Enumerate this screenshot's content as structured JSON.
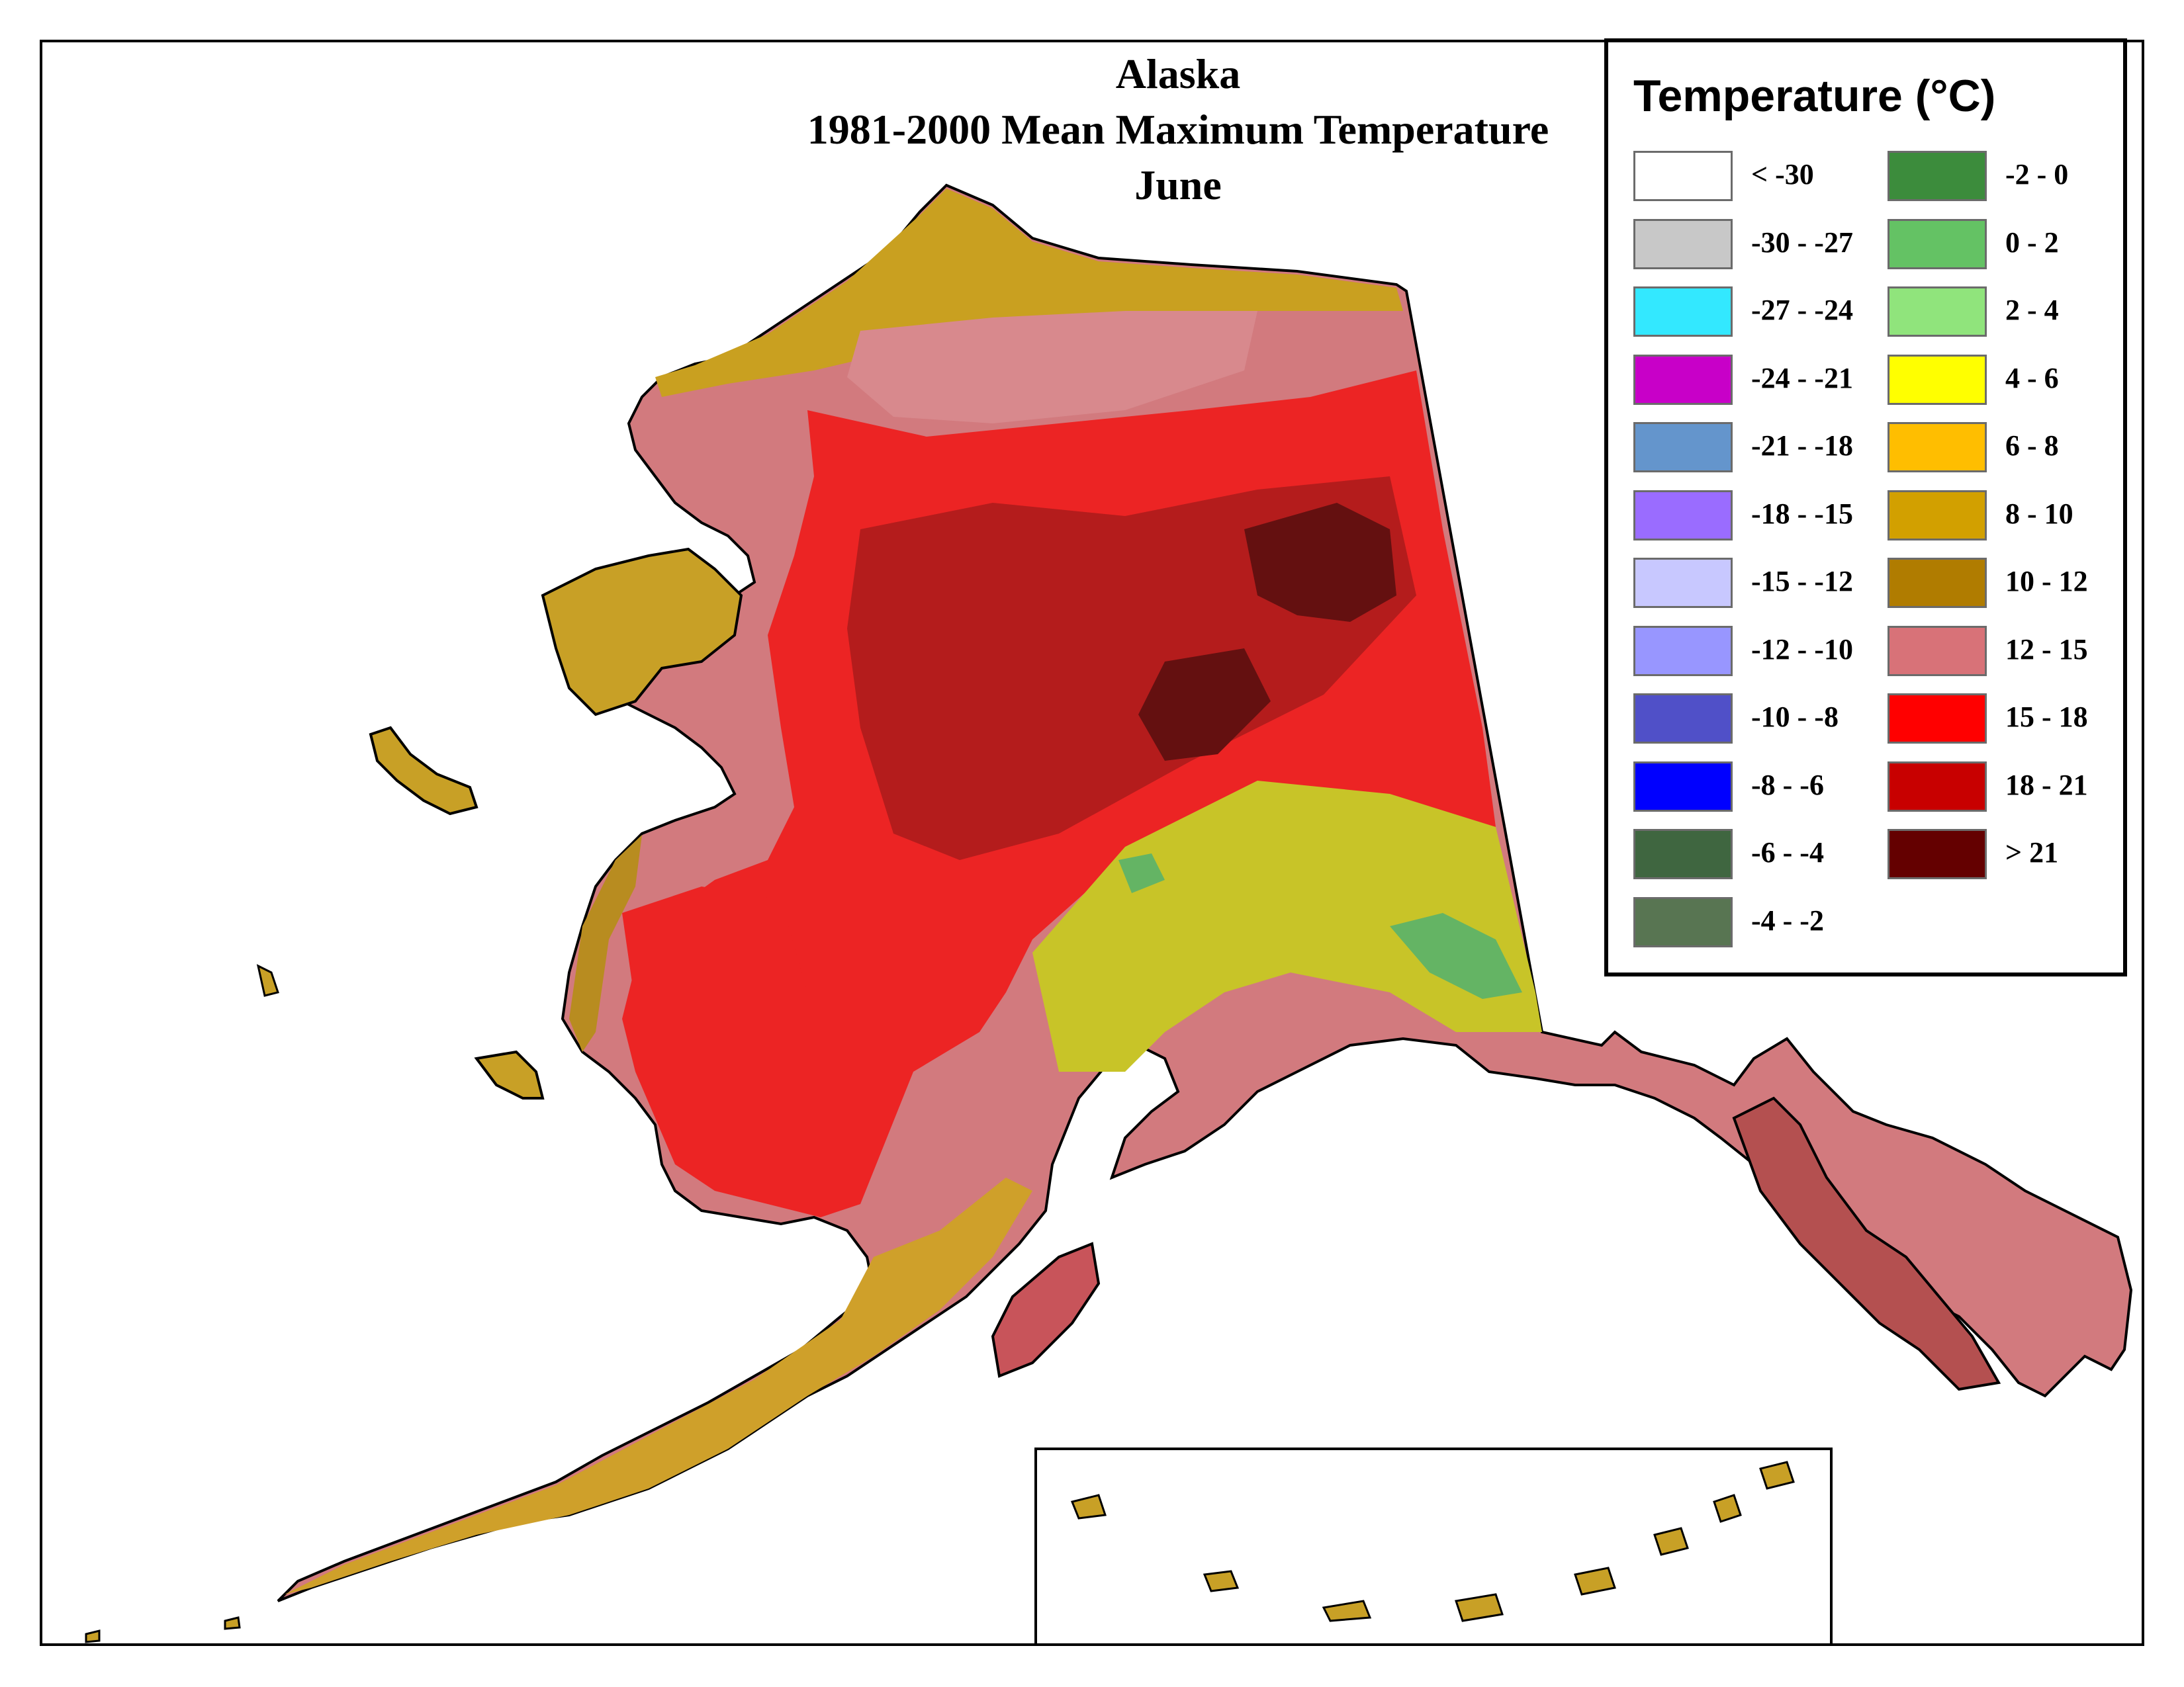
{
  "title": {
    "line1": "Alaska",
    "line2": "1981-2000 Mean Maximum Temperature",
    "line3": "June"
  },
  "legend": {
    "title": "Temperature (°C)",
    "column1": [
      {
        "label": "< -30",
        "color": "#ffffff"
      },
      {
        "label": "-30 - -27",
        "color": "#c8c8c8"
      },
      {
        "label": "-27 - -24",
        "color": "#33e8ff"
      },
      {
        "label": "-24 - -21",
        "color": "#c800c8"
      },
      {
        "label": "-21 - -18",
        "color": "#6495cc"
      },
      {
        "label": "-18 - -15",
        "color": "#9a6cff"
      },
      {
        "label": "-15 - -12",
        "color": "#c8c8ff"
      },
      {
        "label": "-12 - -10",
        "color": "#9896ff"
      },
      {
        "label": "-10 - -8",
        "color": "#5050c8"
      },
      {
        "label": "-8 - -6",
        "color": "#0000ff"
      },
      {
        "label": "-6 - -4",
        "color": "#3f6640"
      },
      {
        "label": "-4 - -2",
        "color": "#587552"
      }
    ],
    "column2": [
      {
        "label": "-2 - 0",
        "color": "#3c8c3c"
      },
      {
        "label": "0 - 2",
        "color": "#64c264"
      },
      {
        "label": "2 - 4",
        "color": "#90e47c"
      },
      {
        "label": "4 - 6",
        "color": "#ffff00"
      },
      {
        "label": "6 - 8",
        "color": "#ffbe00"
      },
      {
        "label": "8 - 10",
        "color": "#d2a000"
      },
      {
        "label": "10 - 12",
        "color": "#b07c00"
      },
      {
        "label": "12 - 15",
        "color": "#d87278"
      },
      {
        "label": "15 - 18",
        "color": "#ff0000"
      },
      {
        "label": "18 - 21",
        "color": "#c80000"
      },
      {
        "label": "> 21",
        "color": "#640000"
      }
    ]
  }
}
